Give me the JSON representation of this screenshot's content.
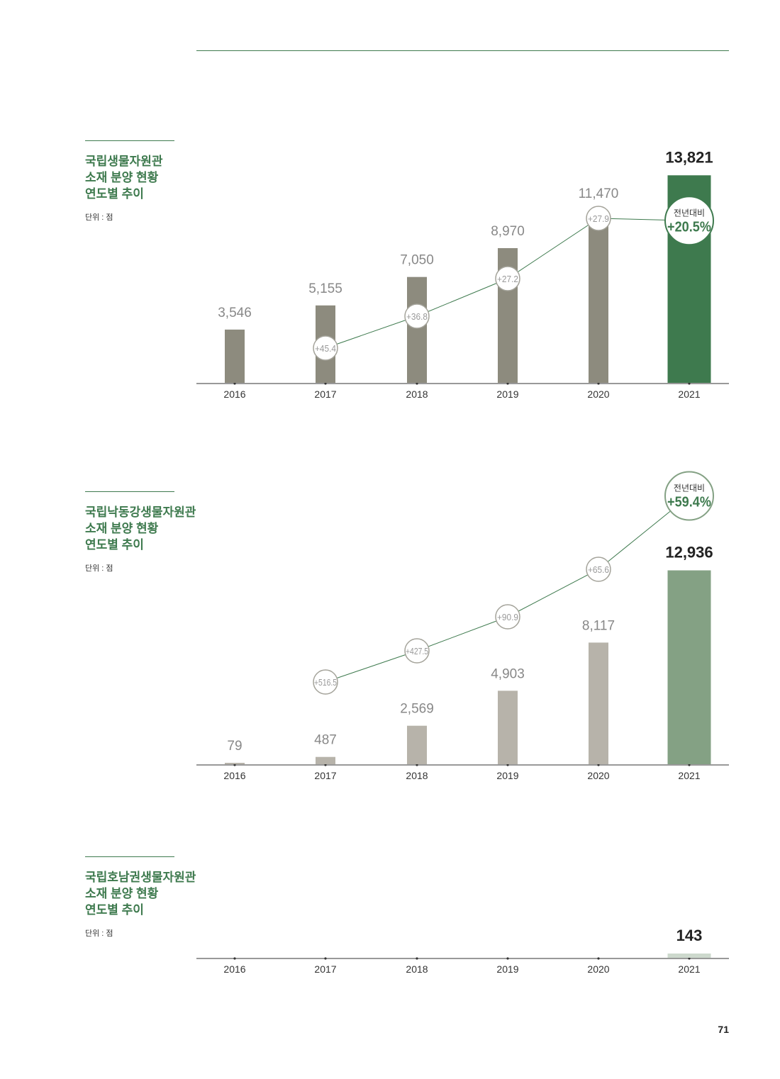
{
  "page_number": "71",
  "colors": {
    "brand_green": "#3e7a4e",
    "dark_bar": "#8d8b7e",
    "light_bar": "#b7b3aa",
    "mid_green": "#84a184",
    "pale_green": "#cdd9cd"
  },
  "sections": [
    {
      "title_lines": [
        "국립생물자원관",
        "소재 분양 현황",
        "연도별 추이"
      ],
      "unit": "단위 : 점"
    },
    {
      "title_lines": [
        "국립낙동강생물자원관",
        "소재 분양 현황",
        "연도별 추이"
      ],
      "unit": "단위 : 점"
    },
    {
      "title_lines": [
        "국립호남권생물자원관",
        "소재 분양 현황",
        "연도별 추이"
      ],
      "unit": "단위 : 점"
    }
  ],
  "chart_data": [
    {
      "type": "bar",
      "categories": [
        "2016",
        "2017",
        "2018",
        "2019",
        "2020",
        "2021"
      ],
      "values": [
        3546,
        5155,
        7050,
        8970,
        11470,
        13821
      ],
      "value_labels": [
        "3,546",
        "5,155",
        "7,050",
        "8,970",
        "11,470",
        "13,821"
      ],
      "growth_line": [
        null,
        45.4,
        36.8,
        27.2,
        27.9,
        20.5
      ],
      "growth_labels": [
        "",
        "+45.4",
        "+36.8",
        "+27.2",
        "+27.9",
        "+20.5%"
      ],
      "highlight_caption": "전년대비",
      "ylim": [
        0,
        14500
      ]
    },
    {
      "type": "bar",
      "categories": [
        "2016",
        "2017",
        "2018",
        "2019",
        "2020",
        "2021"
      ],
      "values": [
        79,
        487,
        2569,
        4903,
        8117,
        12936
      ],
      "value_labels": [
        "79",
        "487",
        "2,569",
        "4,903",
        "8,117",
        "12,936"
      ],
      "growth_line": [
        null,
        516.5,
        427.5,
        90.9,
        65.6,
        59.4
      ],
      "growth_labels": [
        "",
        "+516.5",
        "+427.5",
        "+90.9",
        "+65.6",
        "+59.4%"
      ],
      "highlight_caption": "전년대비",
      "ylim": [
        0,
        14500
      ]
    },
    {
      "type": "bar",
      "categories": [
        "2016",
        "2017",
        "2018",
        "2019",
        "2020",
        "2021"
      ],
      "values": [
        null,
        null,
        null,
        null,
        null,
        143
      ],
      "value_labels": [
        "",
        "",
        "",
        "",
        "",
        "143"
      ],
      "ylim": [
        0,
        14500
      ]
    }
  ]
}
